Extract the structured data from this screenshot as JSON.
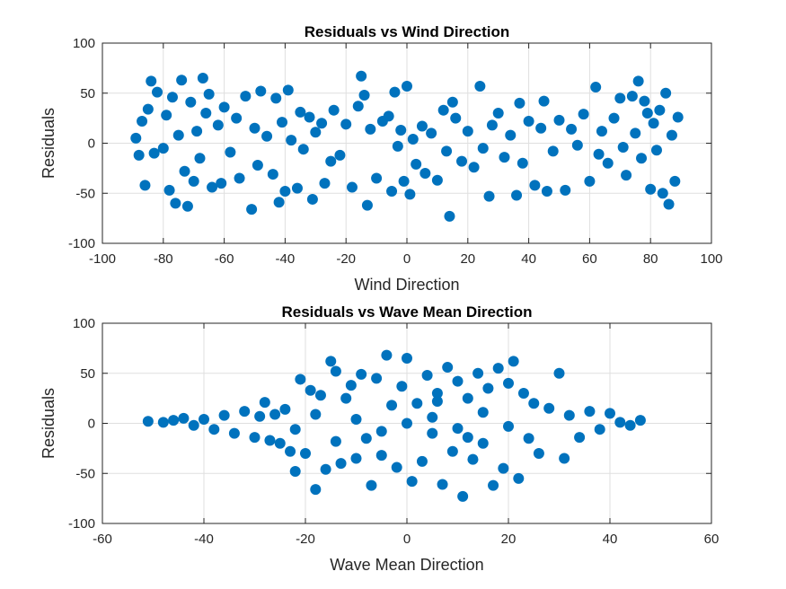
{
  "colors": {
    "marker": "#0072BD",
    "grid": "#dfdfdf",
    "axis": "#262626",
    "background": "#ffffff"
  },
  "chart_data": [
    {
      "type": "scatter",
      "title": "Residuals vs Wind Direction",
      "xlabel": "Wind Direction",
      "ylabel": "Residuals",
      "xlim": [
        -100,
        100
      ],
      "ylim": [
        -100,
        100
      ],
      "xticks": [
        "-100",
        "-80",
        "-60",
        "-40",
        "-20",
        "0",
        "20",
        "40",
        "60",
        "80",
        "100"
      ],
      "yticks": [
        "-100",
        "-50",
        "0",
        "50",
        "100"
      ],
      "grid": true,
      "marker": "filled circle",
      "series": [
        {
          "points": [
            [
              -89,
              5
            ],
            [
              -88,
              -12
            ],
            [
              -87,
              22
            ],
            [
              -86,
              -42
            ],
            [
              -85,
              34
            ],
            [
              -84,
              62
            ],
            [
              -83,
              -10
            ],
            [
              -82,
              51
            ],
            [
              -80,
              -5
            ],
            [
              -79,
              28
            ],
            [
              -78,
              -47
            ],
            [
              -77,
              46
            ],
            [
              -76,
              -60
            ],
            [
              -75,
              8
            ],
            [
              -74,
              63
            ],
            [
              -73,
              -28
            ],
            [
              -72,
              -63
            ],
            [
              -71,
              41
            ],
            [
              -70,
              -38
            ],
            [
              -69,
              12
            ],
            [
              -68,
              -15
            ],
            [
              -67,
              65
            ],
            [
              -66,
              30
            ],
            [
              -65,
              49
            ],
            [
              -64,
              -44
            ],
            [
              -62,
              18
            ],
            [
              -61,
              -40
            ],
            [
              -60,
              36
            ],
            [
              -58,
              -9
            ],
            [
              -56,
              25
            ],
            [
              -55,
              -35
            ],
            [
              -53,
              47
            ],
            [
              -51,
              -66
            ],
            [
              -50,
              15
            ],
            [
              -49,
              -22
            ],
            [
              -48,
              52
            ],
            [
              -46,
              7
            ],
            [
              -44,
              -31
            ],
            [
              -43,
              45
            ],
            [
              -42,
              -59
            ],
            [
              -41,
              21
            ],
            [
              -40,
              -48
            ],
            [
              -39,
              53
            ],
            [
              -38,
              3
            ],
            [
              -36,
              -45
            ],
            [
              -35,
              31
            ],
            [
              -34,
              -6
            ],
            [
              -32,
              26
            ],
            [
              -31,
              -56
            ],
            [
              -30,
              11
            ],
            [
              -28,
              20
            ],
            [
              -27,
              -40
            ],
            [
              -25,
              -18
            ],
            [
              -24,
              33
            ],
            [
              -22,
              -12
            ],
            [
              -20,
              19
            ],
            [
              -18,
              -44
            ],
            [
              -16,
              37
            ],
            [
              -15,
              67
            ],
            [
              -14,
              48
            ],
            [
              -13,
              -62
            ],
            [
              -12,
              14
            ],
            [
              -10,
              -35
            ],
            [
              -8,
              22
            ],
            [
              -6,
              27
            ],
            [
              -5,
              -48
            ],
            [
              -4,
              51
            ],
            [
              -3,
              -3
            ],
            [
              -2,
              13
            ],
            [
              -1,
              -38
            ],
            [
              0,
              57
            ],
            [
              1,
              -51
            ],
            [
              2,
              4
            ],
            [
              3,
              -21
            ],
            [
              5,
              17
            ],
            [
              6,
              -30
            ],
            [
              8,
              10
            ],
            [
              10,
              -37
            ],
            [
              12,
              33
            ],
            [
              13,
              -8
            ],
            [
              14,
              -73
            ],
            [
              15,
              41
            ],
            [
              16,
              25
            ],
            [
              18,
              -18
            ],
            [
              20,
              12
            ],
            [
              22,
              -24
            ],
            [
              24,
              57
            ],
            [
              25,
              -5
            ],
            [
              27,
              -53
            ],
            [
              28,
              18
            ],
            [
              30,
              30
            ],
            [
              32,
              -14
            ],
            [
              34,
              8
            ],
            [
              36,
              -52
            ],
            [
              37,
              40
            ],
            [
              38,
              -20
            ],
            [
              40,
              22
            ],
            [
              42,
              -42
            ],
            [
              44,
              15
            ],
            [
              45,
              42
            ],
            [
              46,
              -48
            ],
            [
              48,
              -8
            ],
            [
              50,
              23
            ],
            [
              52,
              -47
            ],
            [
              54,
              14
            ],
            [
              56,
              -2
            ],
            [
              58,
              29
            ],
            [
              60,
              -38
            ],
            [
              62,
              56
            ],
            [
              63,
              -11
            ],
            [
              64,
              12
            ],
            [
              66,
              -20
            ],
            [
              68,
              25
            ],
            [
              70,
              45
            ],
            [
              71,
              -4
            ],
            [
              72,
              -32
            ],
            [
              74,
              47
            ],
            [
              75,
              10
            ],
            [
              76,
              62
            ],
            [
              77,
              -15
            ],
            [
              78,
              42
            ],
            [
              79,
              30
            ],
            [
              80,
              -46
            ],
            [
              81,
              20
            ],
            [
              82,
              -7
            ],
            [
              83,
              33
            ],
            [
              84,
              -50
            ],
            [
              85,
              50
            ],
            [
              86,
              -61
            ],
            [
              87,
              8
            ],
            [
              88,
              -38
            ],
            [
              89,
              26
            ]
          ]
        }
      ]
    },
    {
      "type": "scatter",
      "title": "Residuals vs Wave Mean Direction",
      "xlabel": "Wave Mean Direction",
      "ylabel": "Residuals",
      "xlim": [
        -60,
        60
      ],
      "ylim": [
        -100,
        100
      ],
      "xticks": [
        "-60",
        "-40",
        "-20",
        "0",
        "20",
        "40",
        "60"
      ],
      "yticks": [
        "-100",
        "-50",
        "0",
        "50",
        "100"
      ],
      "grid": true,
      "marker": "filled circle",
      "series": [
        {
          "points": [
            [
              -51,
              2
            ],
            [
              -48,
              1
            ],
            [
              -46,
              3
            ],
            [
              -44,
              5
            ],
            [
              -42,
              -2
            ],
            [
              -40,
              4
            ],
            [
              -38,
              -6
            ],
            [
              -36,
              8
            ],
            [
              -34,
              -10
            ],
            [
              -32,
              12
            ],
            [
              -30,
              -14
            ],
            [
              -29,
              7
            ],
            [
              -28,
              21
            ],
            [
              -27,
              -17
            ],
            [
              -26,
              9
            ],
            [
              -25,
              -20
            ],
            [
              -24,
              14
            ],
            [
              -23,
              -28
            ],
            [
              -22,
              -48
            ],
            [
              -21,
              44
            ],
            [
              -20,
              -30
            ],
            [
              -19,
              33
            ],
            [
              -18,
              -66
            ],
            [
              -17,
              28
            ],
            [
              -16,
              -46
            ],
            [
              -15,
              62
            ],
            [
              -14,
              52
            ],
            [
              -13,
              -40
            ],
            [
              -12,
              25
            ],
            [
              -11,
              38
            ],
            [
              -10,
              -35
            ],
            [
              -9,
              49
            ],
            [
              -8,
              -15
            ],
            [
              -7,
              -62
            ],
            [
              -6,
              45
            ],
            [
              -5,
              -32
            ],
            [
              -4,
              68
            ],
            [
              -3,
              18
            ],
            [
              -2,
              -44
            ],
            [
              -1,
              37
            ],
            [
              0,
              65
            ],
            [
              1,
              -58
            ],
            [
              2,
              20
            ],
            [
              3,
              -38
            ],
            [
              4,
              48
            ],
            [
              5,
              -10
            ],
            [
              6,
              30
            ],
            [
              7,
              -61
            ],
            [
              8,
              56
            ],
            [
              9,
              -28
            ],
            [
              10,
              42
            ],
            [
              11,
              -73
            ],
            [
              12,
              25
            ],
            [
              13,
              -36
            ],
            [
              14,
              50
            ],
            [
              15,
              -20
            ],
            [
              16,
              35
            ],
            [
              17,
              -62
            ],
            [
              18,
              55
            ],
            [
              19,
              -45
            ],
            [
              20,
              40
            ],
            [
              21,
              62
            ],
            [
              22,
              -55
            ],
            [
              23,
              30
            ],
            [
              24,
              -15
            ],
            [
              25,
              20
            ],
            [
              26,
              -30
            ],
            [
              28,
              15
            ],
            [
              30,
              50
            ],
            [
              31,
              -35
            ],
            [
              32,
              8
            ],
            [
              34,
              -14
            ],
            [
              36,
              12
            ],
            [
              38,
              -6
            ],
            [
              40,
              10
            ],
            [
              42,
              1
            ],
            [
              44,
              -2
            ],
            [
              46,
              3
            ],
            [
              -18,
              9
            ],
            [
              -10,
              4
            ],
            [
              -5,
              -8
            ],
            [
              0,
              0
            ],
            [
              5,
              6
            ],
            [
              10,
              -5
            ],
            [
              15,
              11
            ],
            [
              20,
              -3
            ],
            [
              -22,
              -6
            ],
            [
              -14,
              -18
            ],
            [
              6,
              22
            ],
            [
              12,
              -14
            ]
          ]
        }
      ]
    }
  ]
}
